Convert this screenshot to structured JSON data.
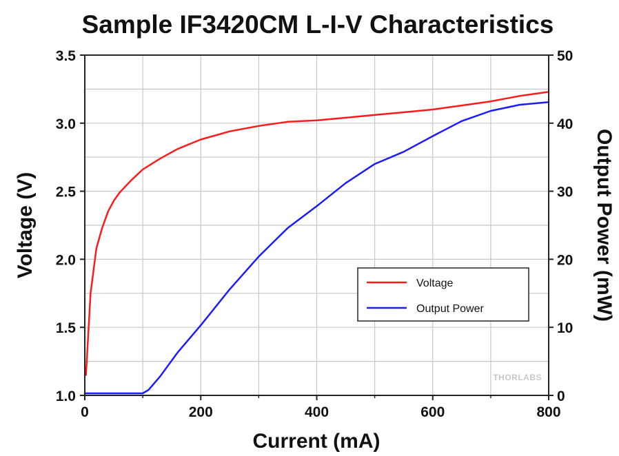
{
  "chart_data": {
    "type": "line",
    "title": "Sample IF3420CM L-I-V Characteristics",
    "xlabel": "Current (mA)",
    "ylabel_left": "Voltage (V)",
    "ylabel_right": "Output Power (mW)",
    "xlim": [
      0,
      800
    ],
    "ylim_left": [
      1.0,
      3.5
    ],
    "ylim_right": [
      0,
      50
    ],
    "x_ticks": [
      "0",
      "200",
      "400",
      "600",
      "800"
    ],
    "y_left_ticks": [
      "1.0",
      "1.5",
      "2.0",
      "2.5",
      "3.0",
      "3.5"
    ],
    "y_right_ticks": [
      "0",
      "10",
      "20",
      "30",
      "40",
      "50"
    ],
    "grid": true,
    "legend_position": "lower-right",
    "watermark": "THORLABS",
    "series": [
      {
        "name": "Voltage",
        "axis": "left",
        "color": "#ff1a1a",
        "x": [
          2,
          10,
          20,
          30,
          40,
          50,
          60,
          80,
          100,
          130,
          160,
          200,
          250,
          300,
          350,
          400,
          450,
          500,
          550,
          600,
          650,
          700,
          750,
          800
        ],
        "y": [
          1.15,
          1.75,
          2.08,
          2.23,
          2.35,
          2.43,
          2.49,
          2.58,
          2.66,
          2.74,
          2.81,
          2.88,
          2.94,
          2.98,
          3.01,
          3.02,
          3.04,
          3.06,
          3.08,
          3.1,
          3.13,
          3.16,
          3.2,
          3.23
        ]
      },
      {
        "name": "Output Power",
        "axis": "right",
        "color": "#1a1aff",
        "x": [
          0,
          50,
          100,
          110,
          130,
          160,
          200,
          250,
          300,
          350,
          400,
          450,
          500,
          550,
          600,
          650,
          700,
          750,
          800
        ],
        "y": [
          0.3,
          0.3,
          0.3,
          0.8,
          2.8,
          6.3,
          10.3,
          15.6,
          20.4,
          24.6,
          27.8,
          31.2,
          34.0,
          35.8,
          38.1,
          40.3,
          41.8,
          42.7,
          43.1
        ]
      }
    ]
  }
}
